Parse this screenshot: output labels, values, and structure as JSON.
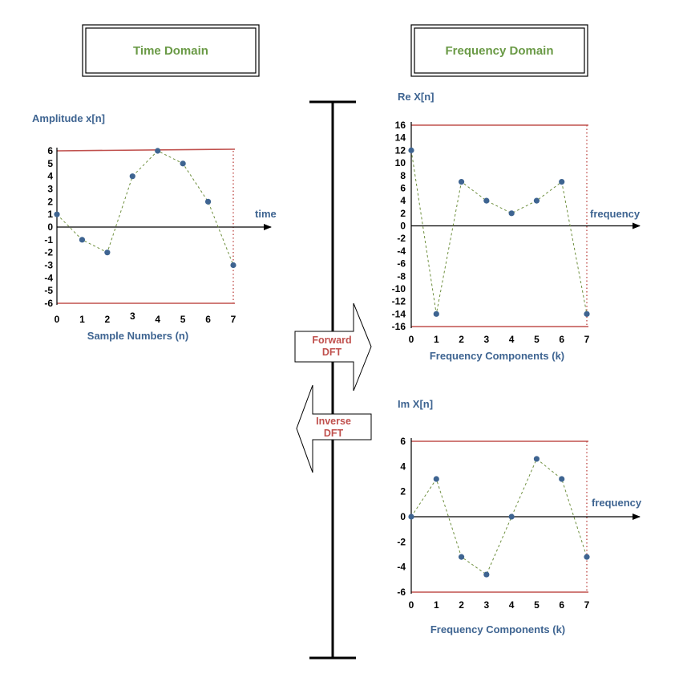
{
  "headers": {
    "time": "Time Domain",
    "frequency": "Frequency Domain"
  },
  "arrows": {
    "forward": [
      "Forward",
      "DFT"
    ],
    "inverse": [
      "Inverse",
      "DFT"
    ]
  },
  "colors": {
    "bound": "#c0504d",
    "point": "#3e6491",
    "curve": "#6e8f3e",
    "title": "#6a9a46"
  },
  "chart_data": [
    {
      "id": "time",
      "type": "scatter",
      "ylabel": "Amplitude  x[n]",
      "xlabel": "Sample Numbers (n)",
      "axis_label": "time",
      "x": [
        0,
        1,
        2,
        3,
        4,
        5,
        6,
        7
      ],
      "y": [
        1,
        -1,
        -2,
        4,
        6,
        5,
        2,
        -3
      ],
      "yticks": [
        6,
        5,
        4,
        3,
        2,
        1,
        0,
        -1,
        -2,
        -3,
        -4,
        -5,
        -6
      ],
      "xticks": [
        0,
        1,
        2,
        3,
        4,
        5,
        6,
        7
      ],
      "ylim": [
        -6,
        6
      ],
      "bounds": [
        6,
        -6
      ]
    },
    {
      "id": "re",
      "type": "scatter",
      "ylabel": "Re X[n]",
      "xlabel": "Frequency Components (k)",
      "axis_label": "frequency",
      "x": [
        0,
        1,
        2,
        3,
        4,
        5,
        6,
        7
      ],
      "y": [
        12,
        -14,
        7,
        4,
        2,
        4,
        7,
        -14
      ],
      "yticks": [
        16,
        14,
        12,
        10,
        8,
        6,
        4,
        2,
        0,
        -2,
        -4,
        -6,
        -8,
        -10,
        -12,
        -14,
        -16
      ],
      "xticks": [
        0,
        1,
        2,
        3,
        4,
        5,
        6,
        7
      ],
      "ylim": [
        -16,
        16
      ],
      "bounds": [
        16,
        -16
      ]
    },
    {
      "id": "im",
      "type": "scatter",
      "ylabel": "Im X[n]",
      "xlabel": "Frequency Components (k)",
      "axis_label": "frequency",
      "x": [
        0,
        1,
        2,
        3,
        4,
        5,
        6,
        7
      ],
      "y": [
        0,
        3,
        -3.2,
        -4.6,
        0,
        4.6,
        3,
        -3.2
      ],
      "yticks": [
        6,
        4,
        2,
        0,
        -2,
        -4,
        -6
      ],
      "xticks": [
        0,
        1,
        2,
        3,
        4,
        5,
        6,
        7
      ],
      "ylim": [
        -6,
        6
      ],
      "bounds": [
        6,
        -6
      ]
    }
  ]
}
